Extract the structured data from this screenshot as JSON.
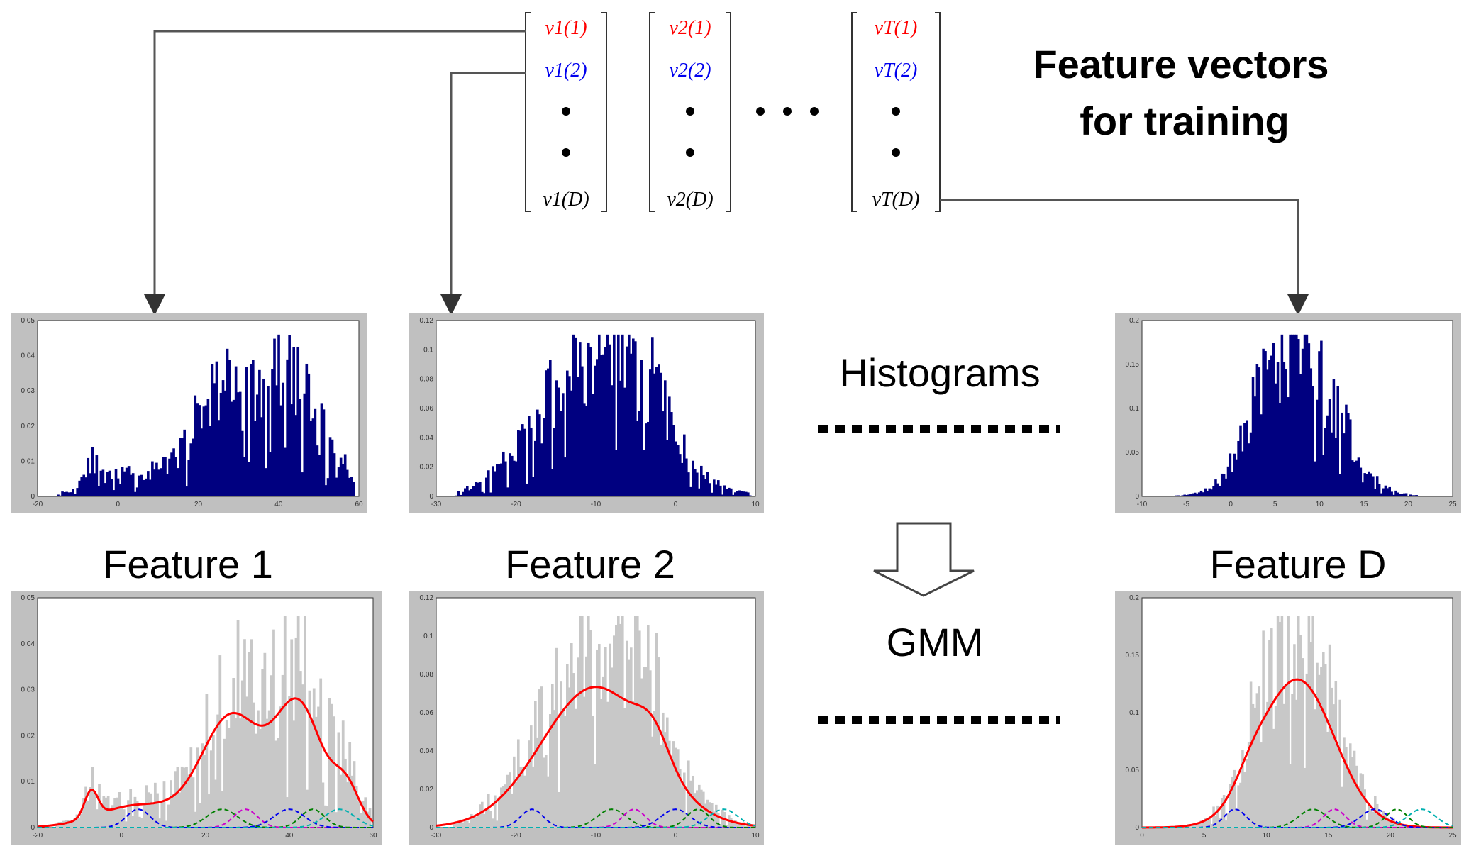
{
  "title": {
    "line1": "Feature vectors",
    "line2": "for training"
  },
  "vectors": [
    {
      "entries": [
        "v1(1)",
        "v1(2)",
        "v1(D)"
      ]
    },
    {
      "entries": [
        "v2(1)",
        "v2(2)",
        "v2(D)"
      ]
    },
    {
      "entries": [
        "vT(1)",
        "vT(2)",
        "vT(D)"
      ]
    }
  ],
  "labels": {
    "histograms": "Histograms",
    "gmm": "GMM",
    "feature_1": "Feature 1",
    "feature_2": "Feature 2",
    "feature_d": "Feature D"
  },
  "panels": {
    "hist_1": {
      "yticks": [
        "0",
        "0.01",
        "0.02",
        "0.03",
        "0.04",
        "0.05"
      ],
      "xticks": [
        "-20",
        "0",
        "20",
        "40",
        "60"
      ]
    },
    "hist_2": {
      "yticks": [
        "0",
        "0.02",
        "0.04",
        "0.06",
        "0.08",
        "0.1",
        "0.12"
      ],
      "xticks": [
        "-30",
        "-20",
        "-10",
        "0",
        "10"
      ]
    },
    "hist_d": {
      "yticks": [
        "0",
        "0.05",
        "0.1",
        "0.15",
        "0.2"
      ],
      "xticks": [
        "-10",
        "-5",
        "0",
        "5",
        "10",
        "15",
        "20",
        "25"
      ]
    },
    "gmm_1": {
      "yticks": [
        "0",
        "0.01",
        "0.02",
        "0.03",
        "0.04",
        "0.05"
      ],
      "xticks": [
        "-20",
        "0",
        "20",
        "40",
        "60"
      ]
    },
    "gmm_2": {
      "yticks": [
        "0",
        "0.02",
        "0.04",
        "0.06",
        "0.08",
        "0.1",
        "0.12"
      ],
      "xticks": [
        "-30",
        "-20",
        "-10",
        "0",
        "10"
      ]
    },
    "gmm_d": {
      "yticks": [
        "0",
        "0.05",
        "0.1",
        "0.15",
        "0.2"
      ],
      "xticks": [
        "0",
        "5",
        "10",
        "15",
        "20",
        "25"
      ]
    }
  },
  "colors": {
    "red": "#ff0000",
    "blue": "#0000ee",
    "navy": "#000080",
    "gray_bars": "#c8c8c8",
    "frame": "#c0c0c0",
    "green": "#008000",
    "magenta": "#cc00cc",
    "cyan": "#00b0b0"
  }
}
